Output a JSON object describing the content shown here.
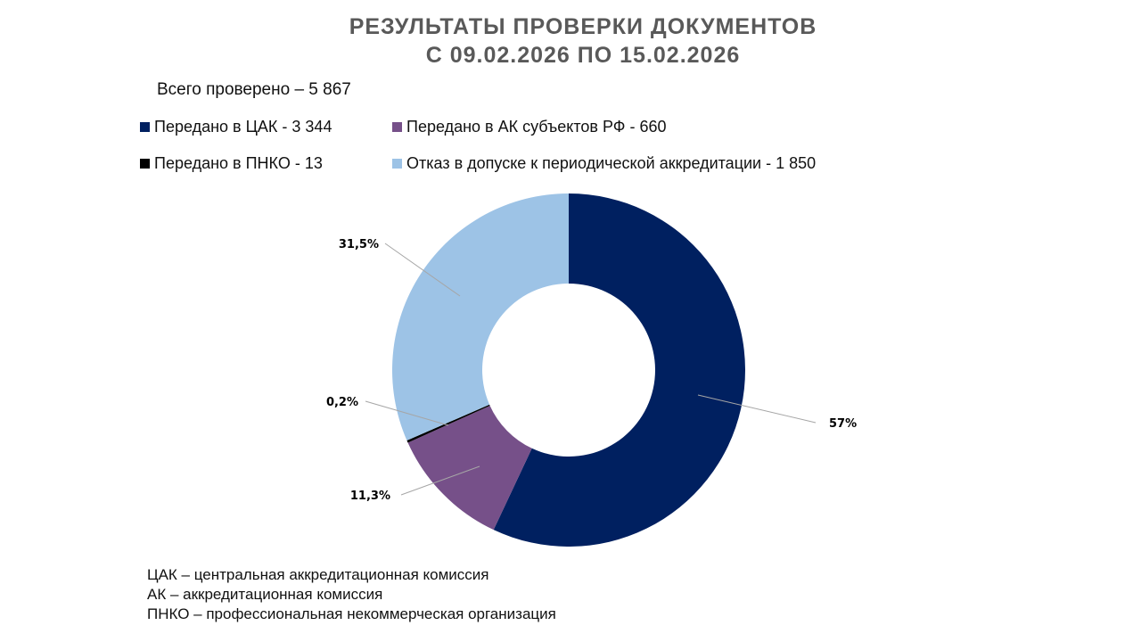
{
  "chart_data": {
    "type": "pie",
    "subtype": "donut",
    "title": [
      "РЕЗУЛЬТАТЫ ПРОВЕРКИ ДОКУМЕНТОВ",
      "С 09.02.2026  ПО 15.02.2026"
    ],
    "total_label": "Всего проверено – 5 867",
    "legend_placement": "top-left",
    "series": [
      {
        "name": "Передано в ЦАК - 3 344",
        "value": 3344,
        "label": "57%",
        "color": "#002060"
      },
      {
        "name": "Передано в АК субъектов РФ - 660",
        "value": 660,
        "label": "11,3%",
        "color": "#765089"
      },
      {
        "name": "Передано в ПНКО - 13",
        "value": 13,
        "label": "0,2%",
        "color": "#000000"
      },
      {
        "name": "Отказ в допуске к периодической аккредитации - 1 850",
        "value": 1850,
        "label": "31,5%",
        "color": "#9DC3E6"
      }
    ]
  },
  "notes": [
    "ЦАК – центральная аккредитационная комиссия",
    "АК – аккредитационная комиссия",
    "ПНКО – профессиональная некоммерческая организация"
  ]
}
